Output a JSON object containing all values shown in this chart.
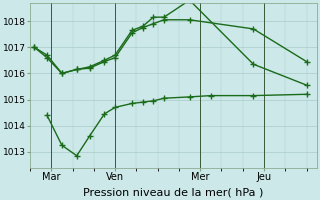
{
  "background_color": "#cce8e8",
  "grid_color": "#aacccc",
  "line_color": "#1a6b1a",
  "xlabel": "Pression niveau de la mer( hPa )",
  "xlabel_fontsize": 8,
  "yticks": [
    1013,
    1014,
    1015,
    1016,
    1017,
    1018
  ],
  "xtick_labels": [
    "Mar",
    "Ven",
    "Mer",
    "Jeu"
  ],
  "xtick_positions": [
    1,
    4,
    8,
    11
  ],
  "ylim": [
    1012.4,
    1018.7
  ],
  "xlim": [
    0,
    13.5
  ],
  "series1_x": [
    0.2,
    0.8,
    1.5,
    2.2,
    2.8,
    3.5,
    4.0,
    4.8,
    5.3,
    5.8,
    6.3,
    7.5,
    10.5,
    13.0
  ],
  "series1_y": [
    1017.0,
    1016.7,
    1016.0,
    1016.15,
    1016.2,
    1016.45,
    1016.6,
    1017.55,
    1017.75,
    1017.9,
    1018.05,
    1018.05,
    1017.7,
    1016.45
  ],
  "series2_x": [
    0.2,
    0.8,
    1.5,
    2.2,
    2.8,
    3.5,
    4.0,
    4.8,
    5.3,
    5.8,
    6.3,
    7.5,
    10.5,
    13.0
  ],
  "series2_y": [
    1017.0,
    1016.6,
    1016.0,
    1016.15,
    1016.25,
    1016.5,
    1016.7,
    1017.65,
    1017.8,
    1018.15,
    1018.15,
    1018.8,
    1016.35,
    1015.55
  ],
  "series3_x": [
    0.8,
    1.5,
    2.2,
    2.8,
    3.5,
    4.0,
    4.8,
    5.3,
    5.8,
    6.3,
    7.5,
    8.5,
    10.5,
    13.0
  ],
  "series3_y": [
    1014.4,
    1013.25,
    1012.85,
    1013.6,
    1014.45,
    1014.7,
    1014.85,
    1014.9,
    1014.95,
    1015.05,
    1015.1,
    1015.15,
    1015.15,
    1015.2
  ],
  "vline_positions": [
    1,
    4,
    8,
    11
  ],
  "vline_color": "#3a5a3a",
  "marker": "+",
  "marker_size": 4,
  "linewidth": 1.0
}
